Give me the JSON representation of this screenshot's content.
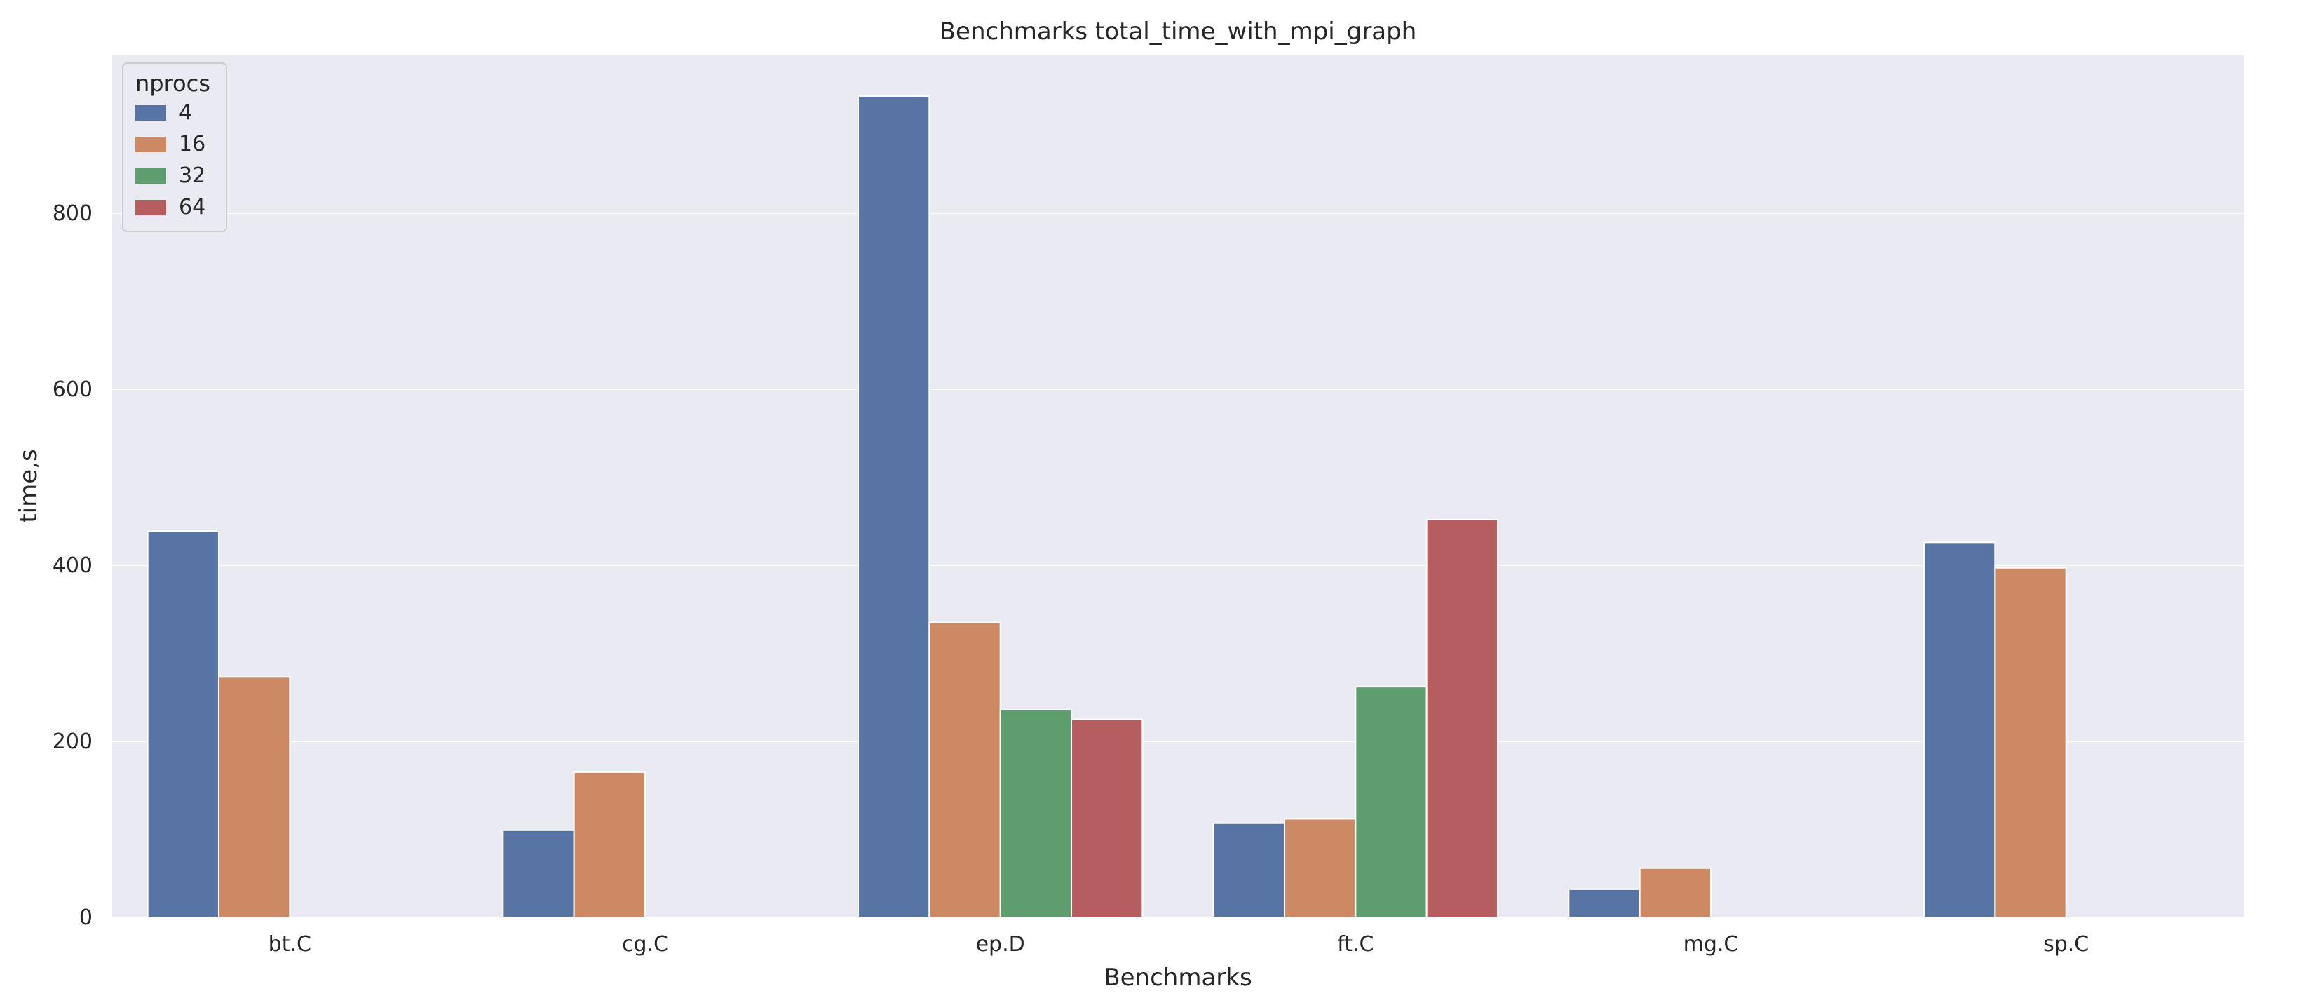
{
  "chart_data": {
    "type": "bar",
    "title": "Benchmarks total_time_with_mpi_graph",
    "xlabel": "Benchmarks",
    "ylabel": "time,s",
    "categories": [
      "bt.C",
      "cg.C",
      "ep.D",
      "ft.C",
      "mg.C",
      "sp.C"
    ],
    "ylim": [
      0,
      980
    ],
    "yticks": [
      0,
      200,
      400,
      600,
      800
    ],
    "grid": true,
    "legend": {
      "title": "nprocs",
      "placement": "top-left"
    },
    "series": [
      {
        "name": "4",
        "color": "#5874a4",
        "values": [
          439,
          99,
          933,
          107,
          32,
          426
        ]
      },
      {
        "name": "16",
        "color": "#cc8963",
        "values": [
          273,
          165,
          335,
          112,
          56,
          397
        ]
      },
      {
        "name": "32",
        "color": "#5e9e6e",
        "values": [
          null,
          null,
          236,
          262,
          null,
          null
        ]
      },
      {
        "name": "64",
        "color": "#b65d60",
        "values": [
          null,
          null,
          225,
          452,
          null,
          null
        ]
      }
    ]
  }
}
